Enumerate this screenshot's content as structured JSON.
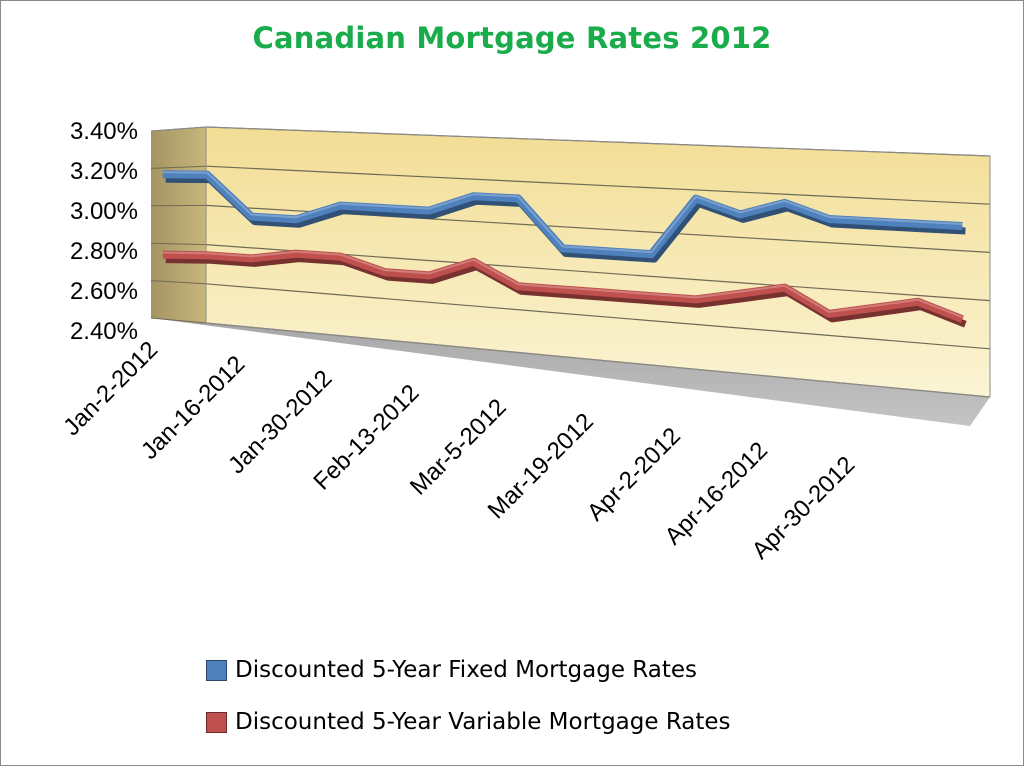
{
  "chart_data": {
    "type": "line",
    "title": "Canadian Mortgage Rates 2012",
    "xlabel": "",
    "ylabel": "",
    "ylim": [
      2.4,
      3.4
    ],
    "yticks": [
      "2.40%",
      "2.60%",
      "2.80%",
      "3.00%",
      "3.20%",
      "3.40%"
    ],
    "x_tick_labels": [
      "Jan-2-2012",
      "Jan-16-2012",
      "Jan-30-2012",
      "Feb-13-2012",
      "Mar-5-2012",
      "Mar-19-2012",
      "Apr-2-2012",
      "Apr-16-2012",
      "Apr-30-2012"
    ],
    "grid": true,
    "legend_position": "bottom",
    "series": [
      {
        "name": "Discounted 5-Year Fixed Mortgage Rates",
        "color": "#4f81bd",
        "values": [
          3.19,
          3.19,
          2.99,
          2.99,
          3.07,
          3.07,
          3.07,
          3.15,
          3.15,
          2.93,
          2.93,
          2.93,
          3.19,
          3.13,
          3.19,
          3.13,
          3.13,
          3.13,
          3.13
        ]
      },
      {
        "name": "Discounted 5-Year Variable Mortgage Rates",
        "color": "#c0504d",
        "values": [
          2.79,
          2.79,
          2.79,
          2.83,
          2.83,
          2.77,
          2.77,
          2.85,
          2.75,
          2.75,
          2.75,
          2.75,
          2.75,
          2.79,
          2.83,
          2.73,
          2.77,
          2.81,
          2.75
        ]
      }
    ]
  }
}
